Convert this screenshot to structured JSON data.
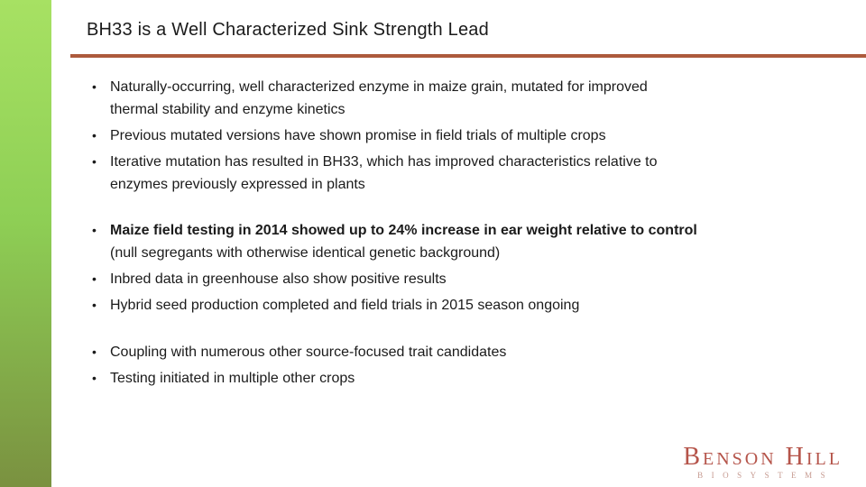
{
  "slide": {
    "title": "BH33 is a Well Characterized Sink Strength Lead",
    "colors": {
      "divider": "#ad5a3c",
      "sidebar_top": "#a7e163",
      "sidebar_bottom": "#7a9140",
      "logo_red": "#b5544a",
      "logo_sub": "#c69a90"
    },
    "groups": [
      {
        "bullets": [
          {
            "text": "Naturally-occurring, well characterized enzyme in maize grain, mutated for improved\nthermal stability and enzyme kinetics"
          },
          {
            "text": "Previous mutated versions have shown promise in field trials of multiple crops"
          },
          {
            "text": "Iterative mutation has resulted in BH33, which has improved characteristics relative to\nenzymes previously expressed in plants"
          }
        ]
      },
      {
        "bullets": [
          {
            "bold": "Maize field testing in 2014 showed up to 24% increase in ear weight relative to control",
            "text": "(null segregants with otherwise identical genetic background)"
          },
          {
            "text": "Inbred data in greenhouse also show positive results"
          },
          {
            "text": "Hybrid seed production completed and field trials in 2015 season ongoing"
          }
        ]
      },
      {
        "bullets": [
          {
            "text": "Coupling with numerous other source-focused trait candidates"
          },
          {
            "text": "Testing initiated in multiple other crops"
          }
        ]
      }
    ],
    "logo": {
      "name": "Benson Hill",
      "subtitle": "BIOSYSTEMS"
    }
  }
}
